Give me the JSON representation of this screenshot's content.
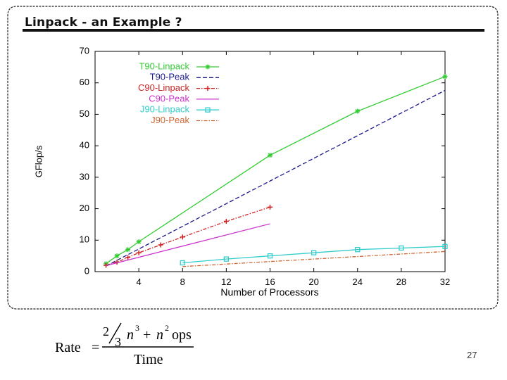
{
  "slide": {
    "title": "Linpack - an Example ?",
    "page_number": "27"
  },
  "formula": {
    "lhs": "Rate",
    "equals": "=",
    "frac_num": "2",
    "frac_den": "3",
    "n1": "n",
    "exp1": "3",
    "plus": "+",
    "n2": "n",
    "exp2": "2",
    "ops": "ops",
    "denominator": "Time"
  },
  "chart_data": {
    "type": "line",
    "xlabel": "Number of Processors",
    "ylabel": "GFlop/s",
    "xlim": [
      0,
      32
    ],
    "ylim": [
      0,
      70
    ],
    "xticks": [
      4,
      8,
      12,
      16,
      20,
      24,
      28,
      32
    ],
    "yticks": [
      0,
      10,
      20,
      30,
      40,
      50,
      60,
      70
    ],
    "grid": false,
    "legend_position": "top-left",
    "series": [
      {
        "name": "T90-Linpack",
        "color": "#33cc33",
        "style": "solid",
        "marker": "star",
        "x": [
          1,
          2,
          3,
          4,
          16,
          24,
          32
        ],
        "y": [
          2.5,
          5,
          7,
          9.5,
          37,
          51,
          62
        ]
      },
      {
        "name": "T90-Peak",
        "color": "#1a1a8c",
        "style": "dash",
        "marker": "none",
        "x": [
          1,
          32
        ],
        "y": [
          1.8,
          57.6
        ]
      },
      {
        "name": "C90-Linpack",
        "color": "#cc2222",
        "style": "dashdot",
        "marker": "plus",
        "x": [
          1,
          2,
          3,
          4,
          6,
          8,
          12,
          16
        ],
        "y": [
          2,
          3,
          4.5,
          6,
          8.5,
          11,
          16,
          20.5
        ]
      },
      {
        "name": "C90-Peak",
        "color": "#cc33cc",
        "style": "solid",
        "marker": "none",
        "x": [
          1,
          16
        ],
        "y": [
          1.9,
          15.2
        ]
      },
      {
        "name": "J90-Linpack",
        "color": "#33cccc",
        "style": "solid",
        "marker": "square",
        "x": [
          8,
          12,
          16,
          20,
          24,
          28,
          32
        ],
        "y": [
          2.8,
          4,
          5,
          6,
          7,
          7.5,
          8
        ]
      },
      {
        "name": "J90-Peak",
        "color": "#cc6633",
        "style": "dashdot",
        "marker": "none",
        "x": [
          8,
          32
        ],
        "y": [
          1.6,
          6.4
        ]
      }
    ]
  }
}
